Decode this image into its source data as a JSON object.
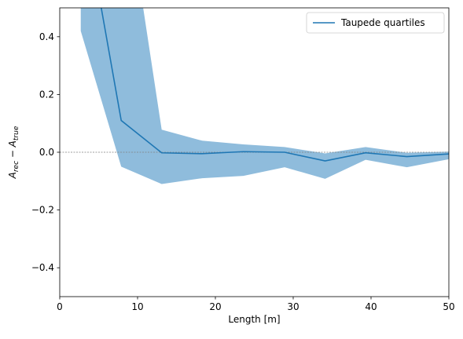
{
  "chart_data": {
    "type": "line",
    "title": "",
    "xlabel": "Length [m]",
    "ylabel_parts": {
      "a": "A",
      "rec": "rec",
      "minus": " − ",
      "true": "true"
    },
    "xlim": [
      0,
      50
    ],
    "ylim": [
      -0.5,
      0.5
    ],
    "xticks": [
      0,
      10,
      20,
      30,
      40,
      50
    ],
    "xtick_labels": [
      "0",
      "10",
      "20",
      "30",
      "40",
      "50"
    ],
    "yticks": [
      -0.4,
      -0.2,
      0.0,
      0.2,
      0.4
    ],
    "ytick_labels": [
      "−0.4",
      "−0.2",
      "0.0",
      "0.2",
      "0.4"
    ],
    "reference_line_y": 0,
    "legend": {
      "placement": "top-right",
      "entries": [
        "Taupede quartiles"
      ]
    },
    "colors": {
      "median": "#1f77b4",
      "band": "#8fbcdc",
      "reference": "#808080"
    },
    "series": [
      {
        "name": "Taupede quartiles",
        "x": [
          2.7,
          7.9,
          13.1,
          18.3,
          23.6,
          28.9,
          34.1,
          39.3,
          44.6,
          50.0
        ],
        "median": [
          0.9,
          0.11,
          -0.002,
          -0.005,
          0.002,
          0.0,
          -0.03,
          -0.002,
          -0.015,
          -0.006
        ],
        "lower": [
          0.42,
          -0.05,
          -0.11,
          -0.09,
          -0.082,
          -0.052,
          -0.092,
          -0.026,
          -0.052,
          -0.024
        ],
        "upper": [
          1.0,
          1.0,
          0.078,
          0.04,
          0.027,
          0.018,
          -0.004,
          0.018,
          -0.002,
          0.002
        ]
      }
    ]
  }
}
